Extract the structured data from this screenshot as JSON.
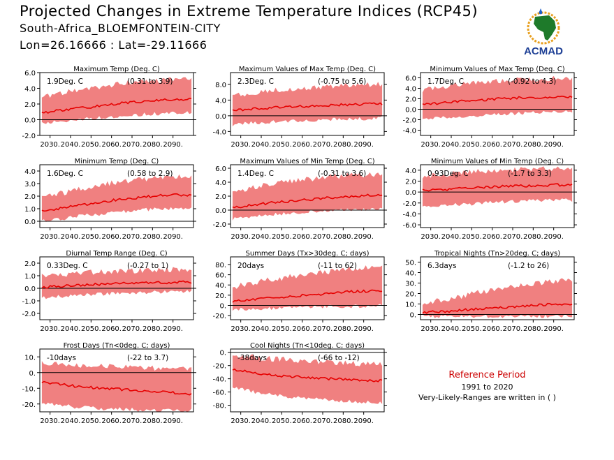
{
  "header": {
    "title": "Projected Changes in Extreme Temperature Indices (RCP45)",
    "station": "South-Africa_BLOEMFONTEIN-CITY",
    "coords": "Lon=26.16666 : Lat=-29.11666"
  },
  "logo": {
    "text": "ACMAD",
    "icon": "africa-map-logo"
  },
  "reference": {
    "title": "Reference Period",
    "years": "1991 to 2020",
    "note": "Very-Likely-Ranges are written in ( )"
  },
  "colors": {
    "band": "#f08080",
    "line": "#e60000",
    "zero": "#000000",
    "ref_title": "#cc0000"
  },
  "chart_data": [
    {
      "type": "area",
      "title": "Maximum Temp (Deg. C)",
      "stat": "1.9Deg. C",
      "range": "(0.31 to 3.9)",
      "xticks": [
        "2030.",
        "2040.",
        "2050.",
        "2060.",
        "2070.",
        "2080.",
        "2090."
      ],
      "xlim": [
        2025,
        2100
      ],
      "ylim": [
        -2,
        6
      ],
      "yticks": [
        -2,
        0,
        2,
        4,
        6
      ],
      "ytick_labels": [
        "-2.0",
        "0.0",
        "2.0",
        "4.0",
        "6.0"
      ],
      "x": [
        2026,
        2032,
        2038,
        2044,
        2050,
        2056,
        2062,
        2068,
        2074,
        2080,
        2086,
        2092,
        2099
      ],
      "median": [
        0.9,
        1.1,
        1.3,
        1.5,
        1.6,
        1.8,
        2.0,
        2.2,
        2.3,
        2.4,
        2.5,
        2.6,
        2.6
      ],
      "lower": [
        -0.2,
        0.0,
        0.1,
        0.3,
        0.4,
        0.5,
        0.6,
        0.8,
        0.9,
        1.0,
        1.0,
        1.1,
        1.2
      ],
      "upper": [
        2.4,
        2.8,
        3.2,
        3.5,
        3.7,
        3.9,
        4.2,
        4.4,
        4.5,
        4.6,
        4.7,
        4.8,
        4.9
      ]
    },
    {
      "type": "area",
      "title": "Maximum Values of Max Temp (Deg. C)",
      "stat": "2.3Deg. C",
      "range": "(-0.75 to 5.6)",
      "xticks": [
        "2030.",
        "2040.",
        "2050.",
        "2060.",
        "2070.",
        "2080.",
        "2090."
      ],
      "xlim": [
        2025,
        2100
      ],
      "ylim": [
        -5,
        11
      ],
      "yticks": [
        -4,
        0,
        4,
        8
      ],
      "ytick_labels": [
        "-4.0",
        "0.0",
        "4.0",
        "8.0"
      ],
      "x": [
        2026,
        2032,
        2038,
        2044,
        2050,
        2056,
        2062,
        2068,
        2074,
        2080,
        2086,
        2092,
        2099
      ],
      "median": [
        1.4,
        1.6,
        1.8,
        2.0,
        2.2,
        2.3,
        2.4,
        2.6,
        2.7,
        2.8,
        2.9,
        3.0,
        3.1
      ],
      "lower": [
        -1.8,
        -1.5,
        -1.3,
        -1.1,
        -1.0,
        -0.9,
        -0.7,
        -0.6,
        -0.5,
        -0.4,
        -0.3,
        -0.2,
        -0.1
      ],
      "upper": [
        4.3,
        4.8,
        5.2,
        5.6,
        5.9,
        6.1,
        6.3,
        6.6,
        6.8,
        7.0,
        7.1,
        7.2,
        7.3
      ]
    },
    {
      "type": "area",
      "title": "Minimum Values of Max Temp (Deg. C)",
      "stat": "1.7Deg. C",
      "range": "(-0.92 to 4.3)",
      "xticks": [
        "2030.",
        "2040.",
        "2050.",
        "2060.",
        "2070.",
        "2080.",
        "2090."
      ],
      "xlim": [
        2025,
        2100
      ],
      "ylim": [
        -5,
        7
      ],
      "yticks": [
        -4,
        -2,
        0,
        2,
        4,
        6
      ],
      "ytick_labels": [
        "-4.0",
        "-2.0",
        "0.0",
        "2.0",
        "4.0",
        "6.0"
      ],
      "x": [
        2026,
        2032,
        2038,
        2044,
        2050,
        2056,
        2062,
        2068,
        2074,
        2080,
        2086,
        2092,
        2099
      ],
      "median": [
        0.9,
        1.1,
        1.3,
        1.5,
        1.7,
        1.8,
        2.0,
        2.1,
        2.2,
        2.3,
        2.2,
        2.3,
        2.4
      ],
      "lower": [
        -1.6,
        -1.4,
        -1.2,
        -1.0,
        -0.9,
        -0.8,
        -0.6,
        -0.5,
        -0.4,
        -0.3,
        -0.3,
        -0.2,
        -0.1
      ],
      "upper": [
        3.2,
        3.6,
        3.9,
        4.2,
        4.4,
        4.6,
        4.8,
        5.0,
        5.1,
        5.2,
        5.3,
        5.4,
        5.5
      ]
    },
    {
      "type": "area",
      "title": "Minimum Temp (Deg. C)",
      "stat": "1.6Deg. C",
      "range": "(0.58 to 2.9)",
      "xticks": [
        "2030.",
        "2040.",
        "2050.",
        "2060.",
        "2070.",
        "2080.",
        "2090."
      ],
      "xlim": [
        2025,
        2100
      ],
      "ylim": [
        -0.5,
        4.5
      ],
      "yticks": [
        0,
        1,
        2,
        3,
        4
      ],
      "ytick_labels": [
        "0.0",
        "1.0",
        "2.0",
        "3.0",
        "4.0"
      ],
      "x": [
        2026,
        2032,
        2038,
        2044,
        2050,
        2056,
        2062,
        2068,
        2074,
        2080,
        2086,
        2092,
        2099
      ],
      "median": [
        0.8,
        0.95,
        1.1,
        1.3,
        1.4,
        1.55,
        1.7,
        1.8,
        1.9,
        2.0,
        2.05,
        2.1,
        2.1
      ],
      "lower": [
        0.2,
        0.3,
        0.4,
        0.55,
        0.65,
        0.75,
        0.85,
        0.95,
        1.05,
        1.1,
        1.15,
        1.2,
        1.25
      ],
      "upper": [
        1.7,
        1.9,
        2.1,
        2.3,
        2.5,
        2.7,
        2.9,
        3.0,
        3.1,
        3.2,
        3.3,
        3.4,
        3.4
      ]
    },
    {
      "type": "area",
      "title": "Maximum Values of Min Temp (Deg. C)",
      "stat": "1.4Deg. C",
      "range": "(-0.31 to 3.6)",
      "xticks": [
        "2030.",
        "2040.",
        "2050.",
        "2060.",
        "2070.",
        "2080.",
        "2090."
      ],
      "xlim": [
        2025,
        2100
      ],
      "ylim": [
        -2.5,
        6.5
      ],
      "yticks": [
        -2,
        0,
        2,
        4,
        6
      ],
      "ytick_labels": [
        "-2.0",
        "0.0",
        "2.0",
        "4.0",
        "6.0"
      ],
      "x": [
        2026,
        2032,
        2038,
        2044,
        2050,
        2056,
        2062,
        2068,
        2074,
        2080,
        2086,
        2092,
        2099
      ],
      "median": [
        0.3,
        0.6,
        0.8,
        1.0,
        1.2,
        1.3,
        1.5,
        1.6,
        1.8,
        1.9,
        2.0,
        2.1,
        2.1
      ],
      "lower": [
        -1.0,
        -0.8,
        -0.6,
        -0.4,
        -0.3,
        -0.2,
        0.0,
        0.1,
        0.2,
        0.3,
        0.3,
        0.4,
        0.4
      ],
      "upper": [
        2.2,
        2.6,
        3.0,
        3.3,
        3.6,
        3.8,
        4.0,
        4.2,
        4.4,
        4.5,
        4.6,
        4.7,
        4.8
      ]
    },
    {
      "type": "area",
      "title": "Minimum Values of Min Temp (Deg. C)",
      "stat": "0.93Deg. C",
      "range": "(-1.7 to 3.3)",
      "xticks": [
        "2030.",
        "2040.",
        "2050.",
        "2060.",
        "2070.",
        "2080.",
        "2090."
      ],
      "xlim": [
        2025,
        2100
      ],
      "ylim": [
        -6.5,
        5
      ],
      "yticks": [
        -6,
        -4,
        -2,
        0,
        2,
        4
      ],
      "ytick_labels": [
        "-6.0",
        "-4.0",
        "-2.0",
        "0.0",
        "2.0",
        "4.0"
      ],
      "x": [
        2026,
        2032,
        2038,
        2044,
        2050,
        2056,
        2062,
        2068,
        2074,
        2080,
        2086,
        2092,
        2099
      ],
      "median": [
        0.3,
        0.4,
        0.5,
        0.7,
        0.8,
        0.9,
        1.0,
        1.1,
        1.1,
        1.2,
        1.2,
        1.3,
        1.3
      ],
      "lower": [
        -2.5,
        -2.3,
        -2.1,
        -1.9,
        -1.8,
        -1.6,
        -1.5,
        -1.4,
        -1.3,
        -1.2,
        -1.2,
        -1.1,
        -1.1
      ],
      "upper": [
        2.4,
        2.6,
        2.8,
        3.0,
        3.2,
        3.3,
        3.4,
        3.5,
        3.6,
        3.7,
        3.7,
        3.8,
        3.8
      ]
    },
    {
      "type": "area",
      "title": "Diurnal Temp Range (Deg. C)",
      "stat": "0.33Deg. C",
      "range": "(-0.27 to 1)",
      "xticks": [
        "2030.",
        "2040.",
        "2050.",
        "2060.",
        "2070.",
        "2080.",
        "2090."
      ],
      "xlim": [
        2025,
        2100
      ],
      "ylim": [
        -2.5,
        2.5
      ],
      "yticks": [
        -2,
        -1,
        0,
        1,
        2
      ],
      "ytick_labels": [
        "-2.0",
        "-1.0",
        "0.0",
        "1.0",
        "2.0"
      ],
      "x": [
        2026,
        2032,
        2038,
        2044,
        2050,
        2056,
        2062,
        2068,
        2074,
        2080,
        2086,
        2092,
        2099
      ],
      "median": [
        0.1,
        0.15,
        0.2,
        0.25,
        0.3,
        0.3,
        0.35,
        0.4,
        0.4,
        0.45,
        0.45,
        0.5,
        0.5
      ],
      "lower": [
        -0.6,
        -0.5,
        -0.45,
        -0.4,
        -0.35,
        -0.3,
        -0.25,
        -0.2,
        -0.2,
        -0.15,
        -0.15,
        -0.1,
        -0.1
      ],
      "upper": [
        0.8,
        0.85,
        0.9,
        1.0,
        1.05,
        1.1,
        1.1,
        1.15,
        1.2,
        1.2,
        1.25,
        1.3,
        1.3
      ]
    },
    {
      "type": "area",
      "title": "Summer Days (Tx>30deg. C; days)",
      "stat": "20days",
      "range": "(-11 to 62)",
      "xticks": [
        "2030.",
        "2040.",
        "2050.",
        "2060.",
        "2070.",
        "2080.",
        "2090."
      ],
      "xlim": [
        2025,
        2100
      ],
      "ylim": [
        -28,
        95
      ],
      "yticks": [
        -20,
        0,
        20,
        40,
        60,
        80
      ],
      "ytick_labels": [
        "-20.",
        "0.",
        "20.",
        "40.",
        "60.",
        "80."
      ],
      "x": [
        2026,
        2032,
        2038,
        2044,
        2050,
        2056,
        2062,
        2068,
        2074,
        2080,
        2086,
        2092,
        2099
      ],
      "median": [
        8,
        10,
        12,
        14,
        16,
        18,
        20,
        22,
        24,
        26,
        27,
        28,
        29
      ],
      "lower": [
        -5,
        -4,
        -3,
        -2,
        -1,
        0,
        0,
        1,
        1,
        2,
        2,
        2,
        3
      ],
      "upper": [
        30,
        36,
        40,
        45,
        48,
        52,
        55,
        58,
        61,
        64,
        66,
        68,
        70
      ]
    },
    {
      "type": "area",
      "title": "Tropical Nights (Tn>20deg. C; days)",
      "stat": "6.3days",
      "range": "(-1.2 to 26)",
      "xticks": [
        "2030.",
        "2040.",
        "2050.",
        "2060.",
        "2070.",
        "2080.",
        "2090."
      ],
      "xlim": [
        2025,
        2100
      ],
      "ylim": [
        -5,
        55
      ],
      "yticks": [
        0,
        10,
        20,
        30,
        40,
        50
      ],
      "ytick_labels": [
        "0.",
        "10.",
        "20.",
        "30.",
        "40.",
        "50."
      ],
      "x": [
        2026,
        2032,
        2038,
        2044,
        2050,
        2056,
        2062,
        2068,
        2074,
        2080,
        2086,
        2092,
        2099
      ],
      "median": [
        2,
        2.5,
        3,
        4,
        5,
        6,
        6.5,
        7,
        8,
        9,
        9.5,
        10,
        10
      ],
      "lower": [
        0,
        0,
        0,
        0,
        0,
        0,
        0,
        0,
        0,
        0,
        0,
        0,
        0
      ],
      "upper": [
        8,
        10,
        12,
        14,
        17,
        19,
        21,
        23,
        25,
        27,
        28,
        29,
        30
      ]
    },
    {
      "type": "area",
      "title": "Frost Days (Tn<0deg. C; days)",
      "stat": "-10days",
      "range": "(-22 to 3.7)",
      "xticks": [
        "2030.",
        "2040.",
        "2050.",
        "2060.",
        "2070.",
        "2080.",
        "2090."
      ],
      "xlim": [
        2025,
        2100
      ],
      "ylim": [
        -25,
        15
      ],
      "yticks": [
        -20,
        -10,
        0,
        10
      ],
      "ytick_labels": [
        "-20.",
        "-10.",
        "0.",
        "10."
      ],
      "x": [
        2026,
        2032,
        2038,
        2044,
        2050,
        2056,
        2062,
        2068,
        2074,
        2080,
        2086,
        2092,
        2099
      ],
      "median": [
        -6,
        -7,
        -8,
        -9,
        -9.5,
        -10,
        -10.5,
        -11,
        -11.5,
        -12,
        -12.5,
        -13,
        -13.5
      ],
      "lower": [
        -18,
        -19,
        -20,
        -21,
        -21,
        -22,
        -22,
        -22,
        -23,
        -23,
        -23,
        -23,
        -23
      ],
      "upper": [
        4,
        4,
        3.5,
        3,
        3,
        2.5,
        2,
        2,
        1.5,
        1,
        1,
        0.5,
        0.5
      ]
    },
    {
      "type": "area",
      "title": "Cool Nights (Tn<10deg. C; days)",
      "stat": "-38days",
      "range": "(-66 to -12)",
      "xticks": [
        "2030.",
        "2040.",
        "2050.",
        "2060.",
        "2070.",
        "2080.",
        "2090."
      ],
      "xlim": [
        2025,
        2100
      ],
      "ylim": [
        -90,
        5
      ],
      "yticks": [
        -80,
        -60,
        -40,
        -20,
        0
      ],
      "ytick_labels": [
        "-80.",
        "-60.",
        "-40.",
        "-20.",
        "0."
      ],
      "x": [
        2026,
        2032,
        2038,
        2044,
        2050,
        2056,
        2062,
        2068,
        2074,
        2080,
        2086,
        2092,
        2099
      ],
      "median": [
        -26,
        -29,
        -32,
        -34,
        -36,
        -37,
        -38,
        -39,
        -40,
        -41,
        -42,
        -43,
        -43
      ],
      "lower": [
        -50,
        -54,
        -58,
        -60,
        -63,
        -65,
        -67,
        -68,
        -70,
        -71,
        -72,
        -73,
        -74
      ],
      "upper": [
        -8,
        -10,
        -12,
        -14,
        -15,
        -16,
        -17,
        -18,
        -19,
        -20,
        -21,
        -22,
        -22
      ]
    }
  ]
}
